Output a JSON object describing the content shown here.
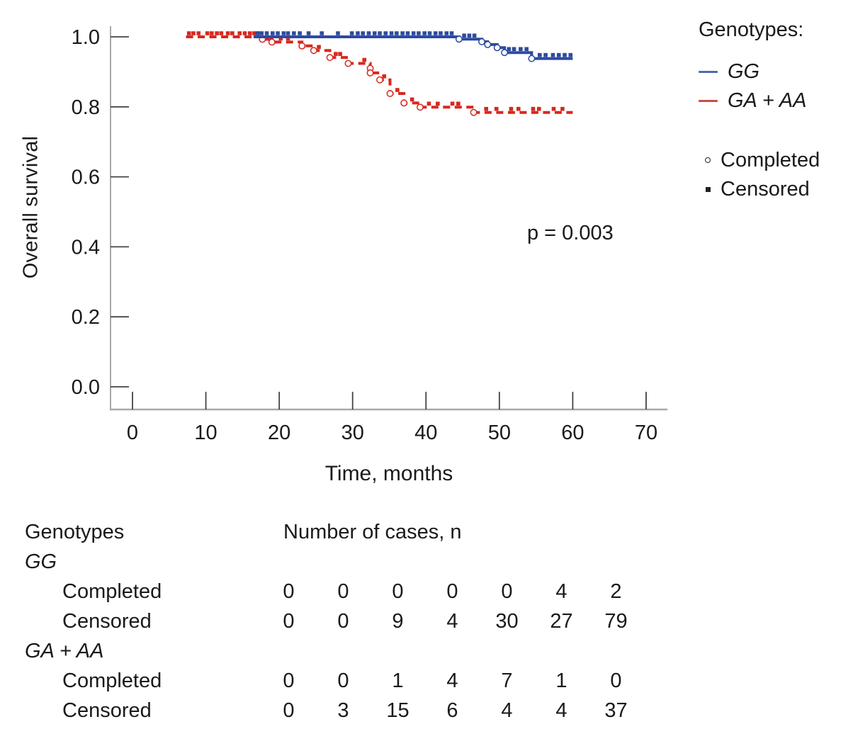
{
  "chart_data": {
    "type": "line",
    "subtype": "kaplan-meier-step",
    "title": "",
    "xlabel": "Time, months",
    "ylabel": "Overall survival",
    "xlim": [
      0,
      70
    ],
    "ylim": [
      0.0,
      1.0
    ],
    "grid": false,
    "legend_position": "right",
    "x_ticks": [
      {
        "v": 0,
        "label": "0"
      },
      {
        "v": 10,
        "label": "10"
      },
      {
        "v": 20,
        "label": "20"
      },
      {
        "v": 30,
        "label": "30"
      },
      {
        "v": 40,
        "label": "40"
      },
      {
        "v": 50,
        "label": "50"
      },
      {
        "v": 60,
        "label": "60"
      },
      {
        "v": 70,
        "label": "70"
      }
    ],
    "y_ticks": [
      {
        "v": 1.0,
        "label": "1.0"
      },
      {
        "v": 0.8,
        "label": "0.8"
      },
      {
        "v": 0.6,
        "label": "0.6"
      },
      {
        "v": 0.4,
        "label": "0.4"
      },
      {
        "v": 0.2,
        "label": "0.2"
      },
      {
        "v": 0.0,
        "label": "0.0"
      }
    ],
    "annotation": {
      "text": "p = 0.003",
      "x_month": 47,
      "y_value": 0.44
    },
    "series": [
      {
        "name": "GA + AA",
        "color": "#d8271e",
        "line_style": "dashed",
        "steps": [
          [
            7.3,
            1.0
          ],
          [
            17.7,
            1.0
          ],
          [
            17.7,
            0.993
          ],
          [
            19.0,
            0.993
          ],
          [
            19.0,
            0.985
          ],
          [
            23.1,
            0.985
          ],
          [
            23.1,
            0.974
          ],
          [
            24.7,
            0.974
          ],
          [
            24.7,
            0.961
          ],
          [
            26.9,
            0.961
          ],
          [
            26.9,
            0.941
          ],
          [
            29.4,
            0.941
          ],
          [
            29.4,
            0.924
          ],
          [
            32.4,
            0.924
          ],
          [
            32.4,
            0.897
          ],
          [
            33.7,
            0.897
          ],
          [
            33.7,
            0.877
          ],
          [
            35.1,
            0.877
          ],
          [
            35.1,
            0.838
          ],
          [
            37.0,
            0.838
          ],
          [
            37.0,
            0.811
          ],
          [
            39.2,
            0.811
          ],
          [
            39.2,
            0.799
          ],
          [
            46.5,
            0.799
          ],
          [
            46.5,
            0.784
          ],
          [
            60,
            0.784
          ]
        ],
        "completed_marks": [
          [
            17.7,
            0.993
          ],
          [
            19.0,
            0.985
          ],
          [
            23.1,
            0.974
          ],
          [
            24.7,
            0.961
          ],
          [
            26.9,
            0.941
          ],
          [
            29.4,
            0.924
          ],
          [
            32.4,
            0.91
          ],
          [
            32.4,
            0.897
          ],
          [
            33.7,
            0.877
          ],
          [
            35.1,
            0.838
          ],
          [
            37.0,
            0.811
          ],
          [
            39.2,
            0.799
          ],
          [
            46.5,
            0.784
          ]
        ],
        "censored_marks": [
          [
            7.7,
            1.0
          ],
          [
            8.3,
            1.0
          ],
          [
            9.0,
            1.0
          ],
          [
            10.2,
            1.0
          ],
          [
            10.8,
            1.0
          ],
          [
            11.5,
            1.0
          ],
          [
            12.1,
            1.0
          ],
          [
            13.0,
            1.0
          ],
          [
            13.6,
            1.0
          ],
          [
            14.6,
            1.0
          ],
          [
            15.3,
            1.0
          ],
          [
            16.0,
            1.0
          ],
          [
            16.6,
            1.0
          ],
          [
            17.2,
            1.0
          ],
          [
            20.2,
            0.985
          ],
          [
            21.2,
            0.985
          ],
          [
            25.4,
            0.961
          ],
          [
            27.7,
            0.941
          ],
          [
            28.3,
            0.941
          ],
          [
            31.6,
            0.924
          ],
          [
            34.3,
            0.877
          ],
          [
            36.1,
            0.838
          ],
          [
            38.1,
            0.811
          ],
          [
            40.4,
            0.799
          ],
          [
            41.6,
            0.799
          ],
          [
            43.6,
            0.799
          ],
          [
            44.4,
            0.799
          ],
          [
            48.2,
            0.784
          ],
          [
            49.6,
            0.784
          ],
          [
            51.6,
            0.784
          ],
          [
            52.6,
            0.784
          ],
          [
            54.6,
            0.784
          ],
          [
            55.4,
            0.784
          ],
          [
            57.4,
            0.784
          ],
          [
            58.6,
            0.784
          ]
        ]
      },
      {
        "name": "GG",
        "color": "#2d4b9e",
        "line_style": "solid",
        "steps": [
          [
            16.5,
            1.0
          ],
          [
            44.5,
            1.0
          ],
          [
            44.5,
            0.9935
          ],
          [
            47.6,
            0.9935
          ],
          [
            47.6,
            0.986
          ],
          [
            48.4,
            0.986
          ],
          [
            48.4,
            0.978
          ],
          [
            49.7,
            0.978
          ],
          [
            49.7,
            0.969
          ],
          [
            50.7,
            0.969
          ],
          [
            50.7,
            0.955
          ],
          [
            54.4,
            0.955
          ],
          [
            54.4,
            0.938
          ],
          [
            60,
            0.938
          ]
        ],
        "completed_marks": [
          [
            44.5,
            0.9935
          ],
          [
            47.6,
            0.986
          ],
          [
            48.4,
            0.978
          ],
          [
            49.7,
            0.969
          ],
          [
            50.7,
            0.955
          ],
          [
            54.4,
            0.938
          ]
        ],
        "censored_marks": [
          [
            17.0,
            1.0
          ],
          [
            17.6,
            1.0
          ],
          [
            18.3,
            1.0
          ],
          [
            19.1,
            1.0
          ],
          [
            19.8,
            1.0
          ],
          [
            20.6,
            1.0
          ],
          [
            21.2,
            1.0
          ],
          [
            22.0,
            1.0
          ],
          [
            22.8,
            1.0
          ],
          [
            24.0,
            1.0
          ],
          [
            25.8,
            1.0
          ],
          [
            28.0,
            1.0
          ],
          [
            29.9,
            1.0
          ],
          [
            30.7,
            1.0
          ],
          [
            31.4,
            1.0
          ],
          [
            32.2,
            1.0
          ],
          [
            33.0,
            1.0
          ],
          [
            33.7,
            1.0
          ],
          [
            34.5,
            1.0
          ],
          [
            35.3,
            1.0
          ],
          [
            36.0,
            1.0
          ],
          [
            36.8,
            1.0
          ],
          [
            37.5,
            1.0
          ],
          [
            38.3,
            1.0
          ],
          [
            39.0,
            1.0
          ],
          [
            39.8,
            1.0
          ],
          [
            40.5,
            1.0
          ],
          [
            41.3,
            1.0
          ],
          [
            42.0,
            1.0
          ],
          [
            42.8,
            1.0
          ],
          [
            43.5,
            1.0
          ],
          [
            45.2,
            0.9935
          ],
          [
            45.9,
            0.9935
          ],
          [
            46.6,
            0.9935
          ],
          [
            51.3,
            0.955
          ],
          [
            52.0,
            0.955
          ],
          [
            52.9,
            0.955
          ],
          [
            53.7,
            0.955
          ],
          [
            55.5,
            0.938
          ],
          [
            56.3,
            0.938
          ],
          [
            57.3,
            0.938
          ],
          [
            58.1,
            0.938
          ],
          [
            58.9,
            0.938
          ],
          [
            59.7,
            0.938
          ]
        ]
      }
    ],
    "axis_colors": {
      "axis_line": "#a8a8a8",
      "tick": "#444444",
      "text": "#1a1a1a"
    }
  },
  "legend": {
    "title": "Genotypes:",
    "items": [
      {
        "label": "GG",
        "color": "#4a6cb4"
      },
      {
        "label": "GA + AA",
        "color": "#ca4d45"
      }
    ],
    "marker_items": [
      {
        "label": "Completed",
        "marker": "open-circle"
      },
      {
        "label": "Censored",
        "marker": "filled-square"
      }
    ],
    "marker_color": "#222222"
  },
  "table": {
    "header_col1": "Genotypes",
    "header_col2": "Number of cases, n",
    "groups": [
      {
        "name": "GG",
        "rows": [
          {
            "label": "Completed",
            "values": [
              "0",
              "0",
              "0",
              "0",
              "0",
              "4",
              "2"
            ]
          },
          {
            "label": "Censored",
            "values": [
              "0",
              "0",
              "9",
              "4",
              "30",
              "27",
              "79"
            ]
          }
        ]
      },
      {
        "name": "GA + AA",
        "rows": [
          {
            "label": "Completed",
            "values": [
              "0",
              "0",
              "1",
              "4",
              "7",
              "1",
              "0"
            ]
          },
          {
            "label": "Censored",
            "values": [
              "0",
              "3",
              "15",
              "6",
              "4",
              "4",
              "37"
            ]
          }
        ]
      }
    ]
  }
}
